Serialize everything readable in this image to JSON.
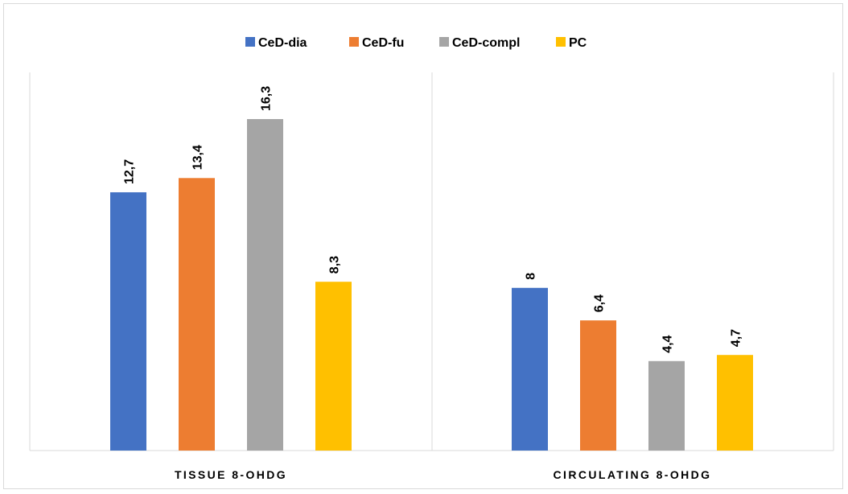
{
  "chart_data": {
    "type": "bar",
    "title": "",
    "xlabel": "",
    "ylabel": "",
    "categories": [
      "TISSUE 8-OHDG",
      "CIRCULATING 8-OHDG"
    ],
    "series": [
      {
        "name": "CeD-dia",
        "color": "#4472C4",
        "values": [
          12.7,
          8
        ],
        "labels": [
          "12,7",
          "8"
        ]
      },
      {
        "name": "CeD-fu",
        "color": "#ED7D31",
        "values": [
          13.4,
          6.4
        ],
        "labels": [
          "13,4",
          "6,4"
        ]
      },
      {
        "name": "CeD-compl",
        "color": "#A5A5A5",
        "values": [
          16.3,
          4.4
        ],
        "labels": [
          "16,3",
          "4,4"
        ]
      },
      {
        "name": "PC",
        "color": "#FFC000",
        "values": [
          8.3,
          4.7
        ],
        "labels": [
          "8,3",
          "4,7"
        ]
      }
    ],
    "ylim": [
      0,
      20
    ],
    "grid": false,
    "legend_position": "top",
    "axis_color": "#d9d9d9"
  }
}
